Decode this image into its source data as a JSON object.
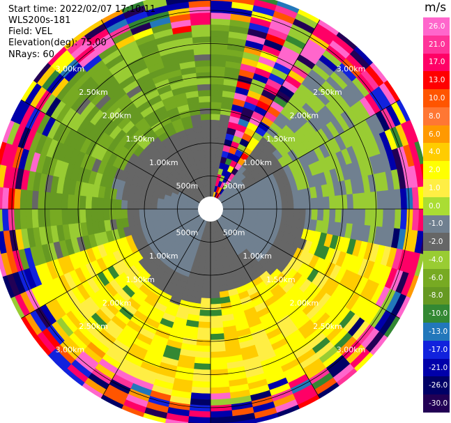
{
  "info": {
    "start_time": "Start time: 2022/02/07 17:10:11",
    "instrument": "WLS200s-181",
    "field": "Field: VEL",
    "elevation": "Elevation(deg): 75.00",
    "nrays": "NRays: 60"
  },
  "colorbar": {
    "unit": "m/s",
    "ticks": [
      "26.0",
      "21.0",
      "17.0",
      "13.0",
      "10.0",
      "8.0",
      "6.0",
      "4.0",
      "2.0",
      "1.0",
      "0.0",
      "-1.0",
      "-2.0",
      "-4.0",
      "-6.0",
      "-8.0",
      "-10.0",
      "-13.0",
      "-17.0",
      "-21.0",
      "-26.0",
      "-30.0"
    ],
    "colors": [
      "#ff66cc",
      "#ff3399",
      "#ff0066",
      "#ff0000",
      "#ff5500",
      "#ff7733",
      "#ff9900",
      "#ffcc00",
      "#ffff00",
      "#ffee44",
      "#aadd33",
      "#708090",
      "#666666",
      "#99cc33",
      "#77aa22",
      "#669922",
      "#338833",
      "#2277bb",
      "#1122dd",
      "#0000aa",
      "#000066",
      "#220055"
    ]
  },
  "chart_data": {
    "type": "heatmap",
    "subtype": "ppi-polar",
    "field": "VEL",
    "units": "m/s",
    "elevation_deg": 75.0,
    "nrays": 60,
    "range_rings_km": [
      0.5,
      1.0,
      1.5,
      2.0,
      2.5,
      3.0
    ],
    "range_ring_labels": [
      "500m",
      "1.00km",
      "1.50km",
      "2.00km",
      "2.50km",
      "3.00km"
    ],
    "max_range_km": 3.3,
    "spoke_step_deg": 30,
    "pattern": {
      "inner": "grey near-zero velocities (-1 to 1 m/s) within ~1.4 km",
      "northwest": "green (-4 to -8 m/s) between ~1.4 and 2.9 km",
      "south": "yellow (1 to 4 m/s) between ~1.4 and 2.9 km",
      "north_strip": "mixed strong velocities along 15-30 deg azimuth",
      "outer": "noisy random velocities beyond ~2.9 km"
    },
    "colorscale": {
      "bounds": [
        -30,
        -26,
        -21,
        -17,
        -13,
        -10,
        -8,
        -6,
        -4,
        -2,
        -1,
        0,
        1,
        2,
        4,
        6,
        8,
        10,
        13,
        17,
        21,
        26
      ]
    }
  }
}
